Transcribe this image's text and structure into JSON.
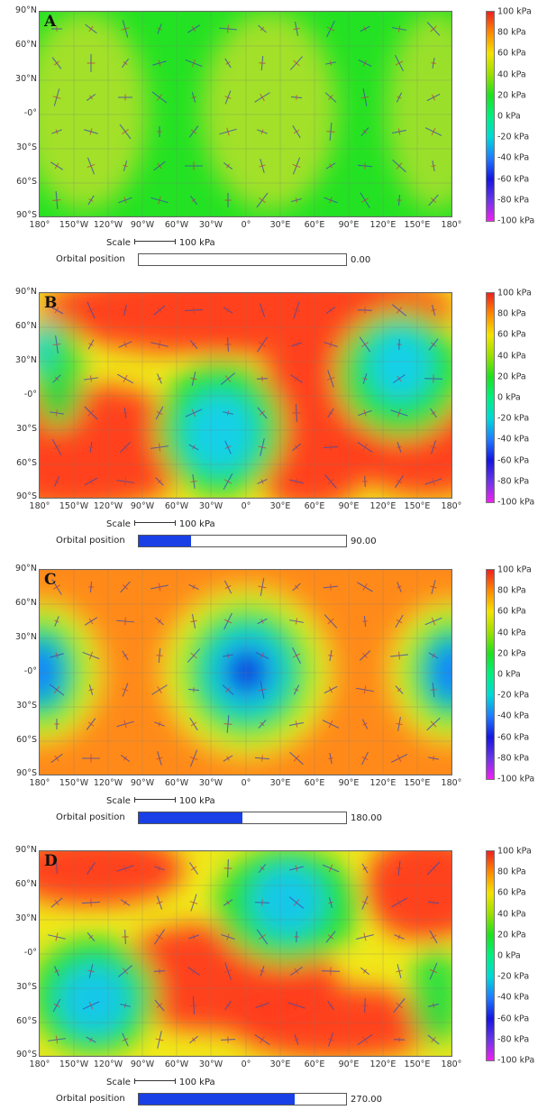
{
  "lat_labels": [
    "90°N",
    "60°N",
    "30°N",
    "-0°",
    "30°S",
    "60°S",
    "90°S"
  ],
  "lon_labels": [
    "180°",
    "150°W",
    "120°W",
    "90°W",
    "60°W",
    "30°W",
    "0°",
    "30°E",
    "60°E",
    "90°E",
    "120°E",
    "150°E",
    "180°"
  ],
  "colorbar_labels": [
    "100 kPa",
    "80 kPa",
    "60 kPa",
    "40 kPa",
    "20 kPa",
    "0 kPa",
    "-20 kPa",
    "-40 kPa",
    "-60 kPa",
    "-80 kPa",
    "-100 kPa"
  ],
  "scale": {
    "label": "Scale",
    "value": "100 kPa"
  },
  "orbit_label": "Orbital position",
  "colors": {
    "high": "#ee2020",
    "low": "#1515e0",
    "mid": "#20e020",
    "bar_fill": "#1840e6"
  },
  "panels": [
    {
      "letter": "A",
      "orbital_position": "0.00",
      "orbit_fraction": 0.0
    },
    {
      "letter": "B",
      "orbital_position": "90.00",
      "orbit_fraction": 0.25
    },
    {
      "letter": "C",
      "orbital_position": "180.00",
      "orbit_fraction": 0.5
    },
    {
      "letter": "D",
      "orbital_position": "270.00",
      "orbit_fraction": 0.75
    }
  ]
}
